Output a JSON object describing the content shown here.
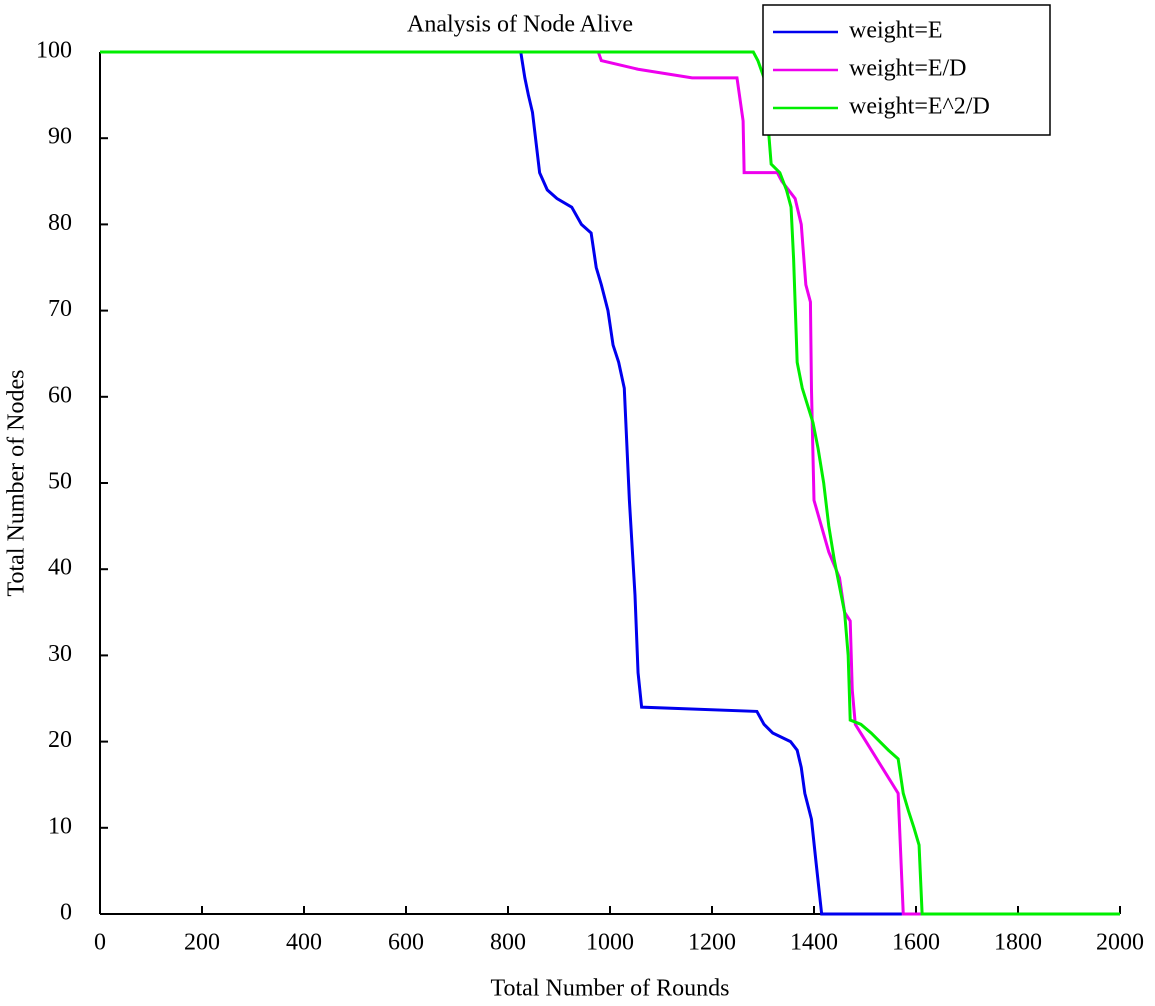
{
  "chart_data": {
    "type": "line",
    "title": "Analysis of Node Alive",
    "xlabel": "Total Number of Rounds",
    "ylabel": "Total Number of Nodes",
    "xlim": [
      0,
      2000
    ],
    "xticks": [
      0,
      200,
      400,
      600,
      800,
      1000,
      1200,
      1400,
      1600,
      1800,
      2000
    ],
    "ylim": [
      0,
      100
    ],
    "yticks": [
      0,
      10,
      20,
      30,
      40,
      50,
      60,
      70,
      80,
      90,
      100
    ],
    "legend": "upper right",
    "series": [
      {
        "name": "weight=E",
        "color": "#0000ee",
        "x": [
          0,
          825,
          833,
          840,
          848,
          862,
          877,
          896,
          925,
          944,
          963,
          973,
          983,
          996,
          1006,
          1017,
          1028,
          1038,
          1049,
          1055,
          1062,
          1288,
          1302,
          1319,
          1354,
          1367,
          1375,
          1382,
          1395,
          1404,
          1415,
          2000
        ],
        "values": [
          100,
          100,
          97,
          95,
          93,
          86,
          84,
          83,
          82,
          80,
          79,
          75,
          73,
          70,
          66,
          64,
          61,
          48,
          37,
          28,
          24,
          23.5,
          22,
          21,
          20,
          19,
          17,
          14,
          11,
          6,
          0,
          0
        ]
      },
      {
        "name": "weight=E/D",
        "color": "#ee00ee",
        "x": [
          0,
          977,
          983,
          1055,
          1161,
          1249,
          1261,
          1263,
          1328,
          1337,
          1363,
          1375,
          1384,
          1393,
          1395,
          1400,
          1429,
          1450,
          1460,
          1471,
          1475,
          1481,
          1502,
          1523,
          1544,
          1565,
          1575,
          2000
        ],
        "values": [
          100,
          100,
          99,
          98,
          97,
          97,
          92,
          86,
          86,
          85,
          83,
          80,
          73,
          71,
          61,
          48,
          42,
          39,
          35,
          34,
          26,
          22,
          20,
          18,
          16,
          14,
          0,
          0
        ]
      },
      {
        "name": "weight=E^2/D",
        "color": "#00ee00",
        "x": [
          0,
          1281,
          1290,
          1302,
          1308,
          1312,
          1316,
          1333,
          1346,
          1355,
          1360,
          1367,
          1377,
          1398,
          1408,
          1419,
          1429,
          1440,
          1450,
          1460,
          1467,
          1471,
          1492,
          1512,
          1546,
          1565,
          1575,
          1585,
          1596,
          1606,
          1612,
          2000
        ],
        "values": [
          100,
          100,
          99,
          97,
          93,
          90,
          87,
          86,
          84,
          82,
          76,
          64,
          61,
          57,
          54,
          50,
          45,
          41,
          38,
          35,
          30,
          22.5,
          22,
          21,
          19,
          18,
          14,
          12,
          10,
          8,
          0,
          0
        ]
      }
    ]
  }
}
